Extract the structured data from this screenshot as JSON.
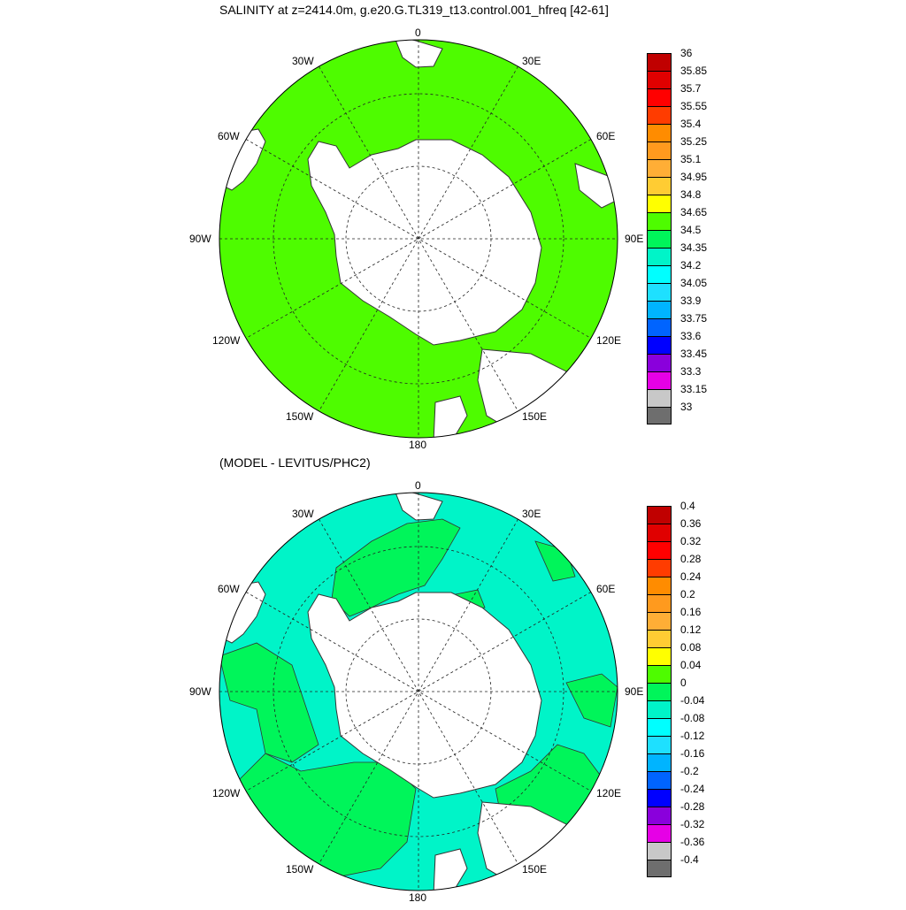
{
  "titles": {
    "top": "SALINITY at z=2414.0m, g.e20.G.TL319_t13.control.001_hfreq [42-61]",
    "bottom": "(MODEL - LEVITUS/PHC2)"
  },
  "lon_labels": {
    "n": "0",
    "ne": "30E",
    "ene": "60E",
    "e": "90E",
    "ese": "120E",
    "se": "150E",
    "s": "180",
    "sw": "150W",
    "wsw": "120W",
    "w": "90W",
    "wnw": "60W",
    "nw": "30W"
  },
  "colors": {
    "ocean_top": "#4efc00",
    "ocean_bottom_pos": "#00f55a",
    "ocean_bottom_neg": "#00f4c8",
    "land": "#ffffff",
    "coast": "#333333"
  },
  "colorbar_top": {
    "labels": [
      "36",
      "35.85",
      "35.7",
      "35.55",
      "35.4",
      "35.25",
      "35.1",
      "34.95",
      "34.8",
      "34.65",
      "34.5",
      "34.35",
      "34.2",
      "34.05",
      "33.9",
      "33.75",
      "33.6",
      "33.45",
      "33.3",
      "33.15",
      "33"
    ],
    "colors": [
      "#c00000",
      "#e00000",
      "#ff0000",
      "#ff3c00",
      "#ff8c00",
      "#ff9a1e",
      "#ffae36",
      "#ffcc33",
      "#ffff00",
      "#4efc00",
      "#00f55a",
      "#00f4c8",
      "#00ffff",
      "#1ee0ff",
      "#00b4ff",
      "#0064ff",
      "#0000ff",
      "#8a00dc",
      "#e600e6",
      "#c8c8c8",
      "#6e6e6e"
    ]
  },
  "colorbar_bottom": {
    "labels": [
      "0.4",
      "0.36",
      "0.32",
      "0.28",
      "0.24",
      "0.2",
      "0.16",
      "0.12",
      "0.08",
      "0.04",
      "0",
      "-0.04",
      "-0.08",
      "-0.12",
      "-0.16",
      "-0.2",
      "-0.24",
      "-0.28",
      "-0.32",
      "-0.36",
      "-0.4"
    ],
    "colors": [
      "#c00000",
      "#e00000",
      "#ff0000",
      "#ff3c00",
      "#ff8c00",
      "#ff9a1e",
      "#ffae36",
      "#ffcc33",
      "#ffff00",
      "#4efc00",
      "#00f55a",
      "#00f4c8",
      "#00ffff",
      "#1ee0ff",
      "#00b4ff",
      "#0064ff",
      "#0000ff",
      "#8a00dc",
      "#e600e6",
      "#c8c8c8",
      "#6e6e6e"
    ]
  }
}
